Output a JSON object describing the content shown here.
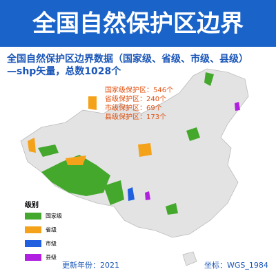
{
  "header": {
    "title": "全国自然保护区边界"
  },
  "subtitle": [
    "全国自然保护区边界数据（国家级、省级、市级、县级）",
    "—shp矢量，总数1028个"
  ],
  "stats": [
    "国家级保护区：546个",
    "省级保护区：240个",
    "市级保护区：69个",
    "县级保护区：173个"
  ],
  "legend": {
    "title": "级别",
    "items": [
      {
        "label": "国家级",
        "color": "#43a82c"
      },
      {
        "label": "省级",
        "color": "#f5a21b"
      },
      {
        "label": "市级",
        "color": "#1f5fe0"
      },
      {
        "label": "县级",
        "color": "#b120e0"
      }
    ]
  },
  "footer": {
    "year": "更新年份：2021",
    "crs": "坐标：WGS_1984"
  }
}
